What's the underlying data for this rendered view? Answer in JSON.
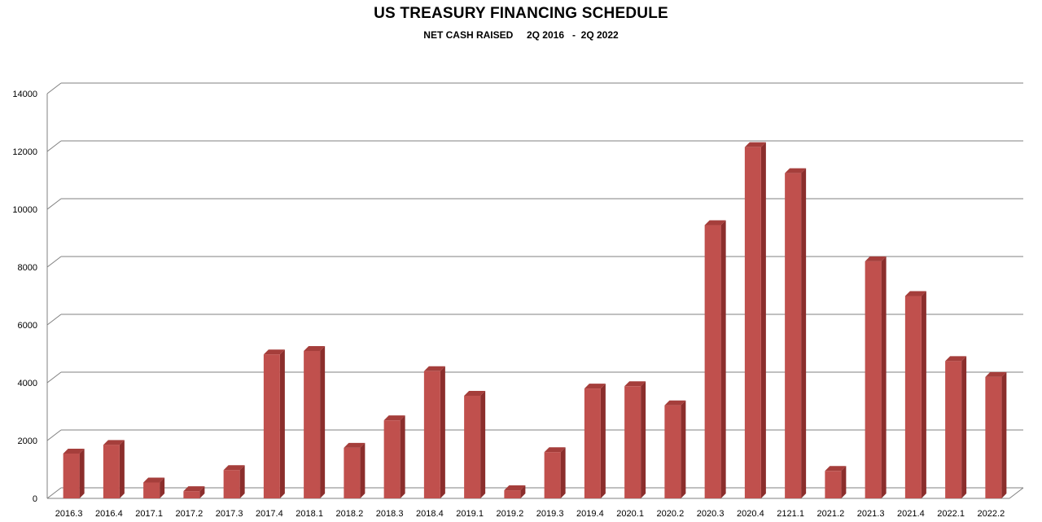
{
  "chart_data": {
    "type": "bar",
    "title": "US TREASURY FINANCING SCHEDULE",
    "subtitle": "NET CASH RAISED     2Q 2016   -  2Q 2022",
    "xlabel": "",
    "ylabel": "",
    "ylim": [
      0,
      14000
    ],
    "yticks": [
      0,
      2000,
      4000,
      6000,
      8000,
      10000,
      12000,
      14000
    ],
    "grid": true,
    "legend": "none",
    "bar_color": "#c0504d",
    "categories": [
      "2016.3",
      "2016.4",
      "2017.1",
      "2017.2",
      "2017.3",
      "2017.4",
      "2018.1",
      "2018.2",
      "2018.3",
      "2018.4",
      "2019.1",
      "2019.2",
      "2019.3",
      "2019.4",
      "2020.1",
      "2020.2",
      "2020.3",
      "2020.4",
      "2121.1",
      "2021.2",
      "2021.3",
      "2021.4",
      "2022.1",
      "2022.2"
    ],
    "values": [
      1550,
      1850,
      550,
      250,
      980,
      4980,
      5100,
      1750,
      2700,
      4400,
      3550,
      280,
      1600,
      3800,
      3880,
      3220,
      9450,
      12150,
      11250,
      950,
      8200,
      7000,
      4750,
      4200
    ]
  }
}
